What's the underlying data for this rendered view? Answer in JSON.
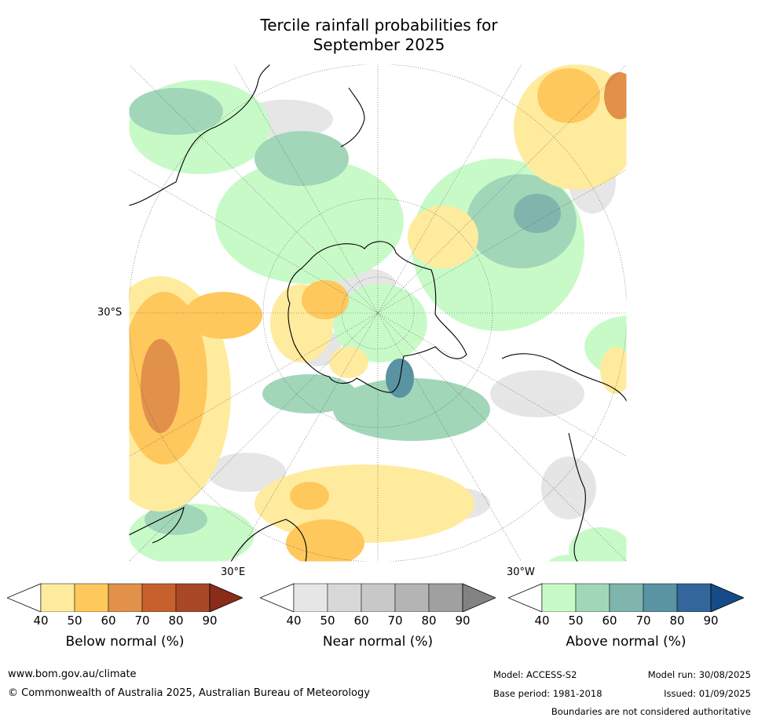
{
  "title_line1": "Tercile rainfall probabilities for",
  "title_line2": "September 2025",
  "map": {
    "projection": "south-polar-stereographic",
    "labels": {
      "lat": "30°S",
      "lon_east": "30°E",
      "lon_west": "30°W"
    }
  },
  "colorbars": [
    {
      "label": "Below normal (%)",
      "ticks": [
        "40",
        "50",
        "60",
        "70",
        "80",
        "90"
      ],
      "colors": [
        "#ffffff",
        "#ffeb9e",
        "#fec85d",
        "#e1914a",
        "#c6612e",
        "#a84827",
        "#8b2b1a"
      ]
    },
    {
      "label": "Near normal (%)",
      "ticks": [
        "40",
        "50",
        "60",
        "70",
        "80",
        "90"
      ],
      "colors": [
        "#ffffff",
        "#e6e6e6",
        "#d8d8d8",
        "#c8c8c8",
        "#b4b4b4",
        "#a0a0a0",
        "#828282"
      ]
    },
    {
      "label": "Above normal (%)",
      "ticks": [
        "40",
        "50",
        "60",
        "70",
        "80",
        "90"
      ],
      "colors": [
        "#ffffff",
        "#c8fac8",
        "#a2d6b8",
        "#7fb5ad",
        "#5a93a2",
        "#33669a",
        "#164a88"
      ]
    }
  ],
  "footer": {
    "url": "www.bom.gov.au/climate",
    "copyright": "© Commonwealth of Australia 2025, Australian Bureau of Meteorology",
    "model": "Model: ACCESS-S2",
    "base_period": "Base period: 1981-2018",
    "model_run": "Model run: 30/08/2025",
    "issued": "Issued: 01/09/2025",
    "disclaimer": "Boundaries are not considered authoritative"
  }
}
